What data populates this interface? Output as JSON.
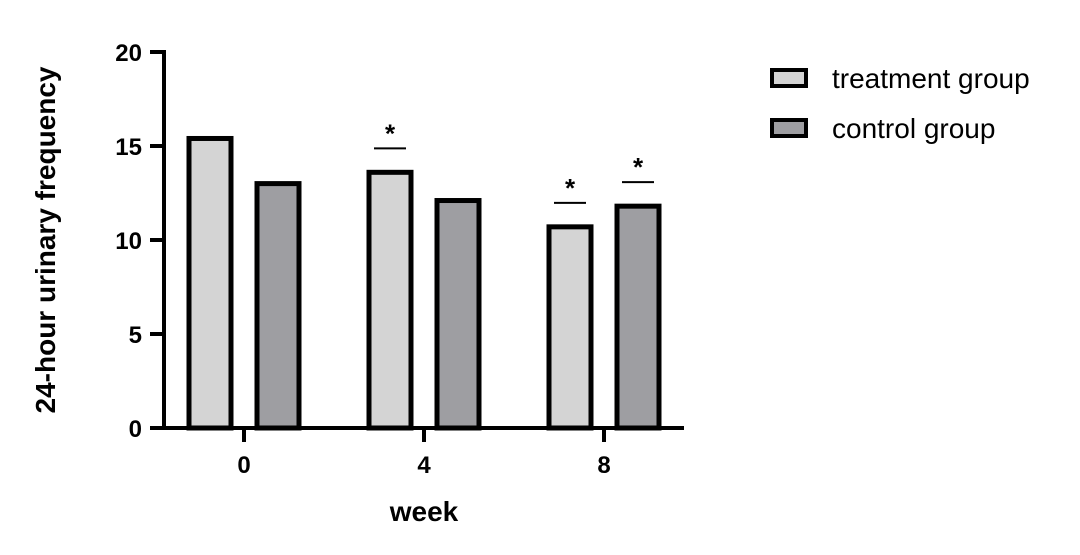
{
  "chart_data": {
    "type": "bar",
    "xlabel": "week",
    "ylabel": "24-hour urinary frequency",
    "ylim": [
      0,
      20
    ],
    "yticks": [
      0,
      5,
      10,
      15,
      20
    ],
    "categories": [
      "0",
      "4",
      "8"
    ],
    "series": [
      {
        "name": "treatment group",
        "color": "#d4d4d4",
        "values": [
          15.4,
          13.6,
          10.7
        ],
        "significance": [
          "",
          "*",
          "*"
        ]
      },
      {
        "name": "control group",
        "color": "#9e9ea2",
        "values": [
          13.0,
          12.1,
          11.8
        ],
        "significance": [
          "",
          "",
          "*"
        ]
      }
    ],
    "grid": false,
    "legend_position": "top-right"
  }
}
